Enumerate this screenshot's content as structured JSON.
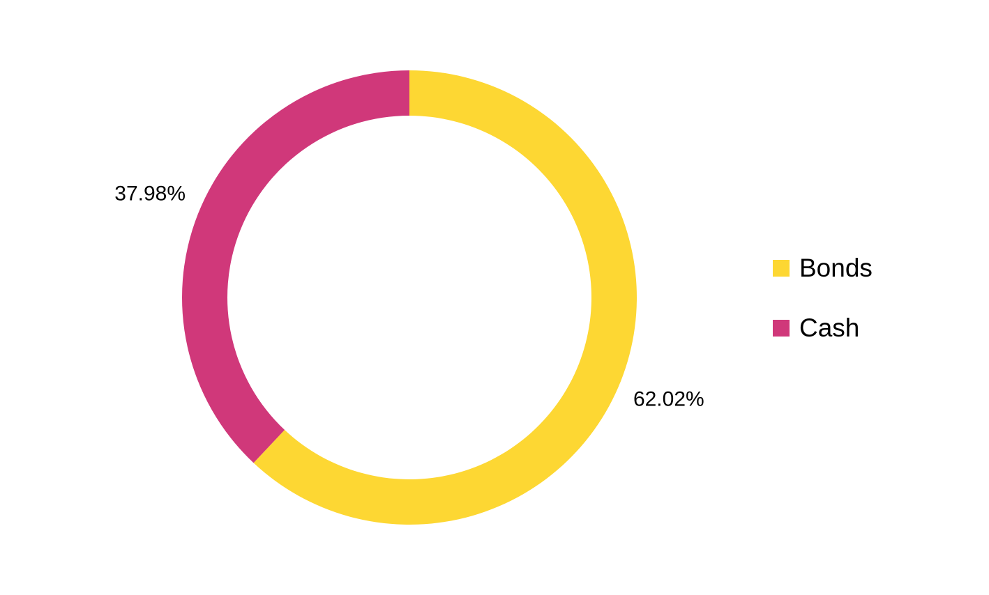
{
  "chart_data": {
    "type": "donut",
    "categories": [
      "Bonds",
      "Cash"
    ],
    "values": [
      62.02,
      37.98
    ],
    "value_labels": [
      "62.02%",
      "37.98%"
    ],
    "colors": [
      "#FDD733",
      "#D0387A"
    ],
    "legend": "right"
  }
}
